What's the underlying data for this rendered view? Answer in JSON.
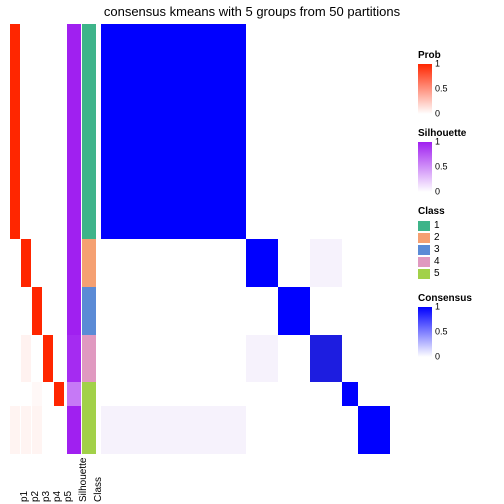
{
  "title": "consensus kmeans with 5 groups from 50 partitions",
  "colors": {
    "white": "#ffffff",
    "red": "#ff2600",
    "red_faint": "#ffece6",
    "red_light": "#ffd9cf",
    "purple": "#a020f0",
    "purple_light": "#f6ecfd",
    "teal": "#3eb489",
    "orange": "#f5a072",
    "blue_class": "#5b8bd6",
    "pink": "#e099c0",
    "green": "#a2d149",
    "blue": "#0000ff",
    "blue_dark": "#1d1de0",
    "near_white": "#f6f2fc",
    "black": "#000000"
  },
  "block_sizes": [
    9,
    2,
    2,
    2,
    1,
    2
  ],
  "p_columns": [
    {
      "id": "p1",
      "vals": [
        1,
        0,
        0,
        0,
        0,
        0.05
      ],
      "w": 10
    },
    {
      "id": "p2",
      "vals": [
        0,
        1,
        0,
        0.06,
        0,
        0.05
      ],
      "w": 10
    },
    {
      "id": "p3",
      "vals": [
        0,
        0,
        1,
        0,
        0.03,
        0.05
      ],
      "w": 10
    },
    {
      "id": "p4",
      "vals": [
        0,
        0,
        0,
        1,
        0,
        0
      ],
      "w": 10
    },
    {
      "id": "p5",
      "vals": [
        0,
        0,
        0,
        0,
        1,
        0
      ],
      "w": 10
    }
  ],
  "silhouette": {
    "id": "Silhouette",
    "vals": [
      1,
      1,
      1,
      0.95,
      0.6,
      1
    ],
    "w": 14
  },
  "class_col": {
    "id": "Class",
    "vals": [
      0,
      1,
      2,
      3,
      4,
      4
    ],
    "colors_key": [
      "teal",
      "orange",
      "blue_class",
      "pink",
      "green",
      "green"
    ],
    "w": 14
  },
  "heatmap": {
    "blocks": [
      [
        1.0,
        0,
        0,
        0,
        0,
        0
      ],
      [
        0,
        1.0,
        0,
        0.02,
        0,
        0
      ],
      [
        0,
        0,
        1.0,
        0,
        0,
        0
      ],
      [
        0,
        0.02,
        0,
        0.88,
        0,
        0
      ],
      [
        0,
        0,
        0,
        0,
        1.0,
        0
      ],
      [
        0.02,
        0,
        0,
        0,
        0,
        1.0
      ]
    ]
  },
  "legends": {
    "prob": {
      "title": "Prob",
      "gradient": [
        "#ffffff",
        "#ff2600"
      ],
      "ticks": [
        {
          "v": 1,
          "p": 0
        },
        {
          "v": 0.5,
          "p": 50
        },
        {
          "v": 0,
          "p": 100
        }
      ]
    },
    "silhouette": {
      "title": "Silhouette",
      "gradient": [
        "#ffffff",
        "#a020f0"
      ],
      "ticks": [
        {
          "v": 1,
          "p": 0
        },
        {
          "v": 0.5,
          "p": 50
        },
        {
          "v": 0,
          "p": 100
        }
      ]
    },
    "class": {
      "title": "Class",
      "items": [
        {
          "label": "1",
          "color": "#3eb489"
        },
        {
          "label": "2",
          "color": "#f5a072"
        },
        {
          "label": "3",
          "color": "#5b8bd6"
        },
        {
          "label": "4",
          "color": "#e099c0"
        },
        {
          "label": "5",
          "color": "#a2d149"
        }
      ]
    },
    "consensus": {
      "title": "Consensus",
      "gradient": [
        "#ffffff",
        "#0000ff"
      ],
      "ticks": [
        {
          "v": 1,
          "p": 0
        },
        {
          "v": 0.5,
          "p": 50
        },
        {
          "v": 0,
          "p": 100
        }
      ]
    }
  },
  "xlabels": [
    "p1",
    "p2",
    "p3",
    "p4",
    "p5",
    "Silhouette",
    "Class"
  ]
}
